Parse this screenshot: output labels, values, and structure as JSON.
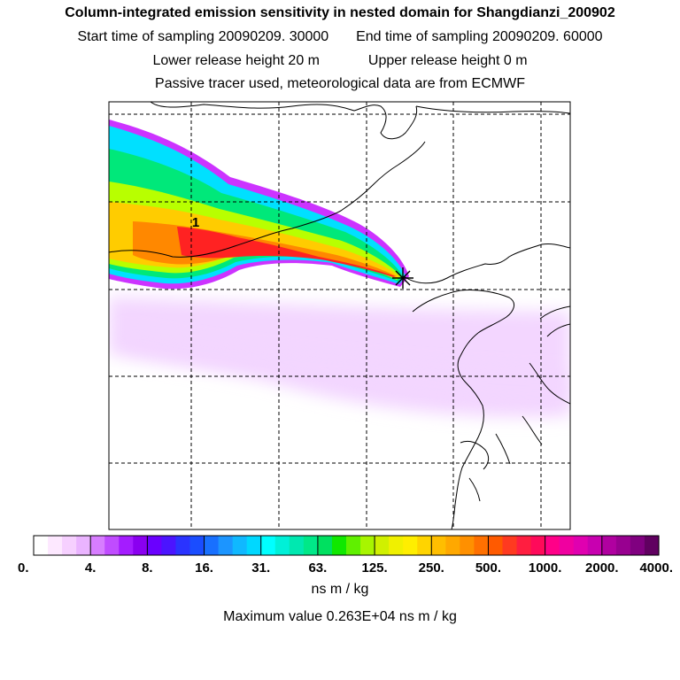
{
  "header": {
    "title": "Column-integrated emission sensitivity in nested domain for Shangdianzi_200902",
    "start_label": "Start time of sampling 20090209. 30000",
    "end_label": "End time of sampling 20090209. 60000",
    "lower_label": "Lower release height   20 m",
    "upper_label": "Upper release height    0 m",
    "tracer_line": "Passive tracer used, meteorological data are from ECMWF"
  },
  "map": {
    "marker_label": "1",
    "plume_colors": [
      "#cc33ff",
      "#00e0ff",
      "#00e87a",
      "#b8ff00",
      "#ffcc00",
      "#ff8800",
      "#ff2222"
    ],
    "background_plume_color": "#f3d6ff"
  },
  "colorbar": {
    "tick_labels": [
      "0.",
      "4.",
      "8.",
      "16.",
      "31.",
      "63.",
      "125.",
      "250.",
      "500.",
      "1000.",
      "2000.",
      "4000."
    ],
    "colors": [
      "#ffffff",
      "#fde8ff",
      "#f6d0ff",
      "#eab4ff",
      "#d77dff",
      "#c04cff",
      "#a41cff",
      "#8a00f0",
      "#6a00ff",
      "#4b14ff",
      "#2a33ff",
      "#1a4dff",
      "#1870ff",
      "#1c95ff",
      "#10b8ff",
      "#00d8ff",
      "#00ffff",
      "#00f0d8",
      "#00e8b0",
      "#00e888",
      "#00e060",
      "#10e800",
      "#60f000",
      "#a8f500",
      "#d0f000",
      "#f0f000",
      "#ffee00",
      "#ffd400",
      "#ffbe00",
      "#ffa800",
      "#ff9000",
      "#ff7000",
      "#ff5a00",
      "#ff3a20",
      "#ff1e40",
      "#ff0a5a",
      "#ff0088",
      "#f000a0",
      "#e000b0",
      "#c800b0",
      "#b000a0",
      "#980090",
      "#800080",
      "#600060"
    ],
    "unit_label": "ns m / kg",
    "max_value_label": "Maximum value  0.263E+04 ns m / kg"
  }
}
